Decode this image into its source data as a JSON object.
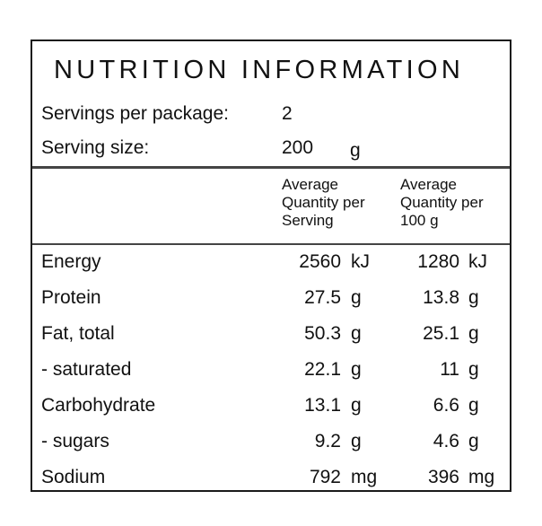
{
  "panel": {
    "title": "NUTRITION INFORMATION",
    "servings_label": "Servings per package:",
    "servings_value": "2",
    "size_label": "Serving size:",
    "size_value": "200",
    "size_unit": "g",
    "col_serving_header": [
      "Average",
      "Quantity per",
      "Serving"
    ],
    "col_100g_header": [
      "Average",
      "Quantity per",
      "100 g"
    ],
    "rows": [
      {
        "name": "Energy",
        "per_serving": "2560",
        "per_serving_unit": "kJ",
        "per_100g": "1280",
        "per_100g_unit": "kJ"
      },
      {
        "name": "Protein",
        "per_serving": "27.5",
        "per_serving_unit": "g",
        "per_100g": "13.8",
        "per_100g_unit": "g"
      },
      {
        "name": "Fat, total",
        "per_serving": "50.3",
        "per_serving_unit": "g",
        "per_100g": "25.1",
        "per_100g_unit": "g"
      },
      {
        "name": "- saturated",
        "per_serving": "22.1",
        "per_serving_unit": "g",
        "per_100g": "11",
        "per_100g_unit": "g"
      },
      {
        "name": "Carbohydrate",
        "per_serving": "13.1",
        "per_serving_unit": "g",
        "per_100g": "6.6",
        "per_100g_unit": "g"
      },
      {
        "name": "- sugars",
        "per_serving": "9.2",
        "per_serving_unit": "g",
        "per_100g": "4.6",
        "per_100g_unit": "g"
      },
      {
        "name": "Sodium",
        "per_serving": "792",
        "per_serving_unit": "mg",
        "per_100g": "396",
        "per_100g_unit": "mg"
      }
    ]
  }
}
